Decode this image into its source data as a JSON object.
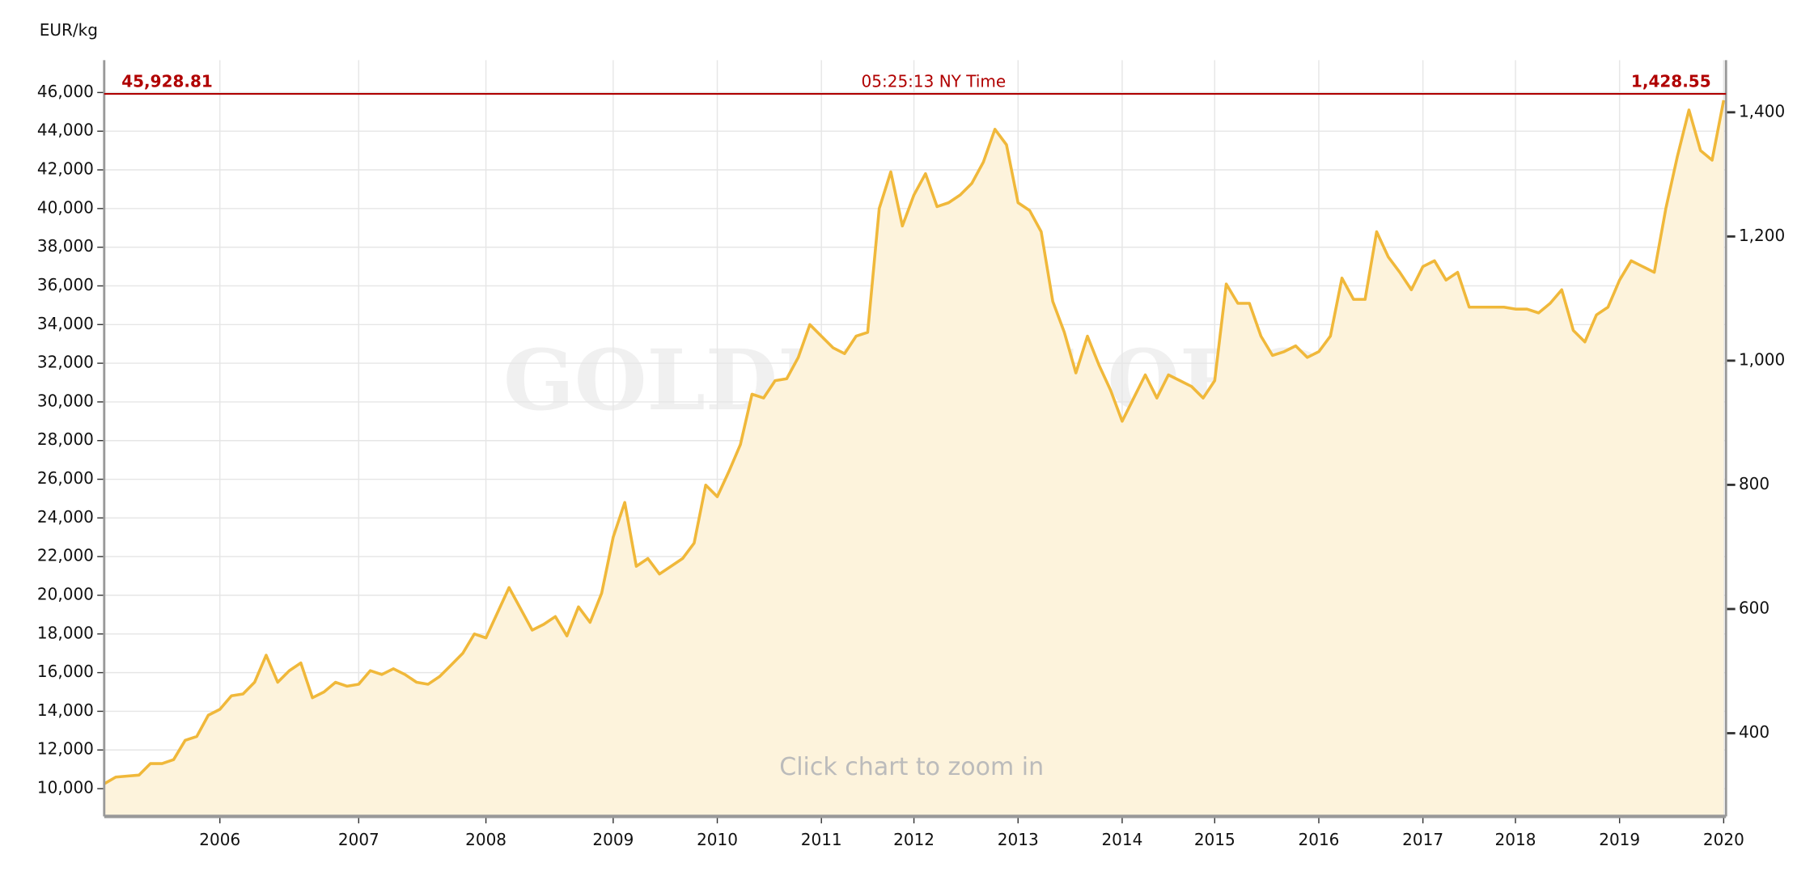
{
  "chart_data": {
    "type": "area",
    "y_label": "EUR/kg",
    "current": {
      "value": 45928.81,
      "label": "45,928.81"
    },
    "current_y2": {
      "value": 1428.55,
      "label": "1,428.55"
    },
    "time_label": "05:25:13 NY Time",
    "watermark": "GOLDPRICE.ORG",
    "hint": "Click chart to zoom in",
    "grid": true,
    "categories": [
      null,
      null,
      null,
      null,
      null,
      null,
      null,
      null,
      null,
      null,
      "2006",
      null,
      null,
      null,
      null,
      null,
      null,
      null,
      null,
      null,
      null,
      null,
      "2007",
      null,
      null,
      null,
      null,
      null,
      null,
      null,
      null,
      null,
      null,
      "2008",
      null,
      null,
      null,
      null,
      null,
      null,
      null,
      null,
      null,
      null,
      "2009",
      null,
      null,
      null,
      null,
      null,
      null,
      null,
      null,
      "2010",
      null,
      null,
      null,
      null,
      null,
      null,
      null,
      null,
      "2011",
      null,
      null,
      null,
      null,
      null,
      null,
      null,
      "2012",
      null,
      null,
      null,
      null,
      null,
      null,
      null,
      null,
      "2013",
      null,
      null,
      null,
      null,
      null,
      null,
      null,
      null,
      "2014",
      null,
      null,
      null,
      null,
      null,
      null,
      null,
      "2015",
      null,
      null,
      null,
      null,
      null,
      null,
      null,
      null,
      "2016",
      null,
      null,
      null,
      null,
      null,
      null,
      null,
      null,
      "2017",
      null,
      null,
      null,
      null,
      null,
      null,
      null,
      "2018",
      null,
      null,
      null,
      null,
      null,
      null,
      null,
      null,
      "2019",
      null,
      null,
      null,
      null,
      null,
      null,
      null,
      null,
      "2020"
    ],
    "series": [
      {
        "name": "EUR/kg",
        "color": "#f0b83a",
        "fill": "#fdf3dc",
        "values": [
          10250,
          10600,
          10650,
          10700,
          11300,
          11300,
          11500,
          12500,
          12700,
          13800,
          14100,
          14800,
          14900,
          15500,
          16900,
          15500,
          16100,
          16500,
          14700,
          15000,
          15500,
          15300,
          15400,
          16100,
          15900,
          16200,
          15900,
          15500,
          15400,
          15800,
          16400,
          17000,
          18000,
          17800,
          19100,
          20400,
          19300,
          18200,
          18500,
          18900,
          17900,
          19400,
          18600,
          20100,
          23000,
          24800,
          21500,
          21900,
          21100,
          21500,
          21900,
          22700,
          25700,
          25100,
          26400,
          27800,
          30400,
          30200,
          31100,
          31200,
          32300,
          34000,
          33400,
          32800,
          32500,
          33400,
          33600,
          40000,
          41900,
          39100,
          40700,
          41800,
          40100,
          40300,
          40700,
          41300,
          42400,
          44100,
          43300,
          40300,
          39900,
          38800,
          35200,
          33600,
          31500,
          33400,
          31900,
          30600,
          29000,
          30200,
          31400,
          30200,
          31400,
          31100,
          30800,
          30200,
          31100,
          36100,
          35100,
          35100,
          33400,
          32400,
          32600,
          32900,
          32300,
          32600,
          33400,
          36400,
          35300,
          35300,
          38800,
          37500,
          36700,
          35800,
          37000,
          37300,
          36300,
          36700,
          34900,
          34900,
          34900,
          34900,
          34800,
          34800,
          34600,
          35100,
          35800,
          33700,
          33100,
          34500,
          34900,
          36300,
          37300,
          37000,
          36700,
          40000,
          42700,
          45100,
          43000,
          42500,
          45600
        ]
      }
    ],
    "ylim": [
      8565,
      47675
    ],
    "yticks": [
      {
        "value": 10000,
        "label": "10,000"
      },
      {
        "value": 12000,
        "label": "12,000"
      },
      {
        "value": 14000,
        "label": "14,000"
      },
      {
        "value": 16000,
        "label": "16,000"
      },
      {
        "value": 18000,
        "label": "18,000"
      },
      {
        "value": 20000,
        "label": "20,000"
      },
      {
        "value": 22000,
        "label": "22,000"
      },
      {
        "value": 24000,
        "label": "24,000"
      },
      {
        "value": 26000,
        "label": "26,000"
      },
      {
        "value": 28000,
        "label": "28,000"
      },
      {
        "value": 30000,
        "label": "30,000"
      },
      {
        "value": 32000,
        "label": "32,000"
      },
      {
        "value": 34000,
        "label": "34,000"
      },
      {
        "value": 36000,
        "label": "36,000"
      },
      {
        "value": 38000,
        "label": "38,000"
      },
      {
        "value": 40000,
        "label": "40,000"
      },
      {
        "value": 42000,
        "label": "42,000"
      },
      {
        "value": 44000,
        "label": "44,000"
      },
      {
        "value": 46000,
        "label": "46,000"
      }
    ],
    "y2lim": [
      266,
      1484
    ],
    "y2ticks": [
      400,
      600,
      800,
      {
        "value": 1000,
        "label": "1,000"
      },
      {
        "value": 1200,
        "label": "1,200"
      },
      {
        "value": 1400,
        "label": "1,400"
      }
    ]
  }
}
